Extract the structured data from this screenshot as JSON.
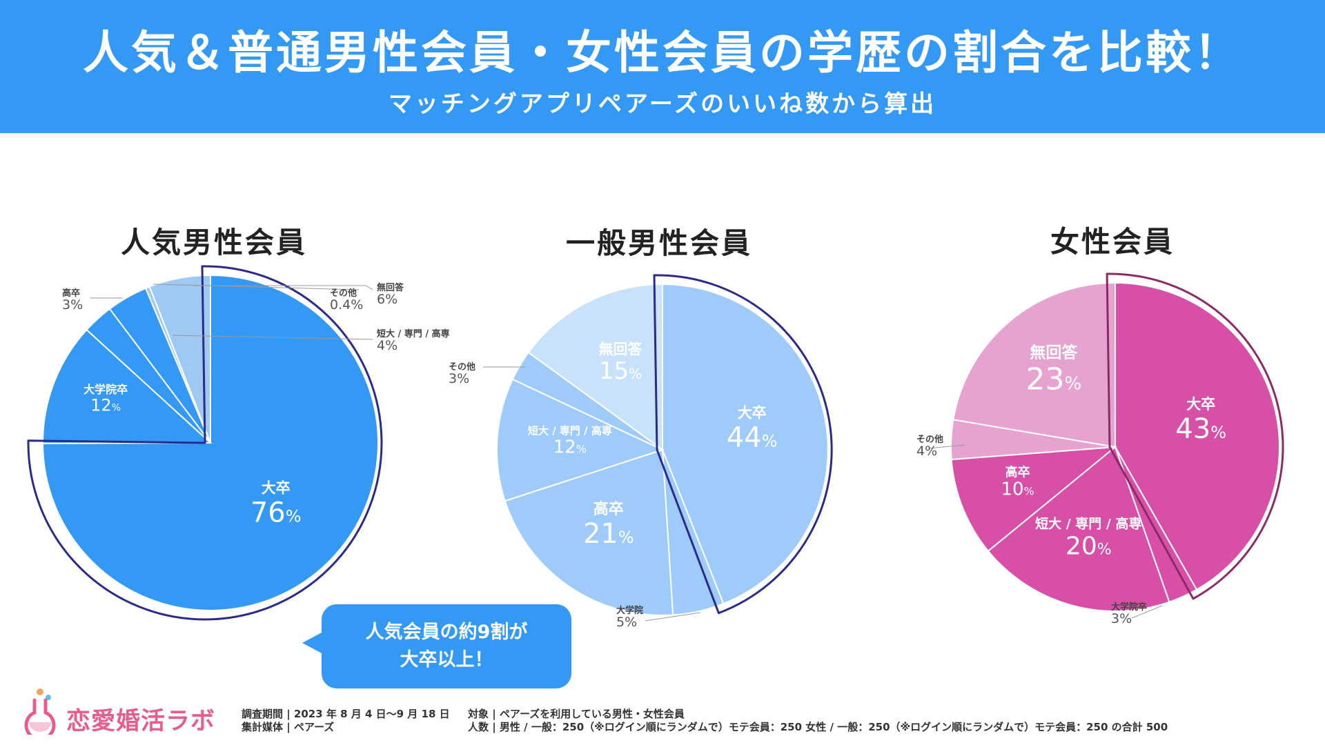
{
  "banner": {
    "title": "人気＆普通男性会員・女性会員の学歴の割合を比較！",
    "subtitle": "マッチングアプリペアーズのいいね数から算出"
  },
  "chart_data": [
    {
      "type": "pie",
      "title": "人気男性会員",
      "highlight_label": "大卒",
      "highlight_color": "#2a2a8c",
      "slices": [
        {
          "label": "大卒",
          "value": 76,
          "display": "76%",
          "color": "#3498f5"
        },
        {
          "label": "大学院卒",
          "value": 12,
          "display": "12%",
          "color": "#3498f5"
        },
        {
          "label": "高卒",
          "value": 3,
          "display": "3%",
          "color": "#3498f5"
        },
        {
          "label": "短大 / 専門 / 高専",
          "value": 4,
          "display": "4%",
          "color": "#3498f5"
        },
        {
          "label": "その他",
          "value": 0.4,
          "display": "0.4%",
          "color": "#9ec9f3"
        },
        {
          "label": "無回答",
          "value": 6,
          "display": "6%",
          "color": "#9ec9f3"
        }
      ]
    },
    {
      "type": "pie",
      "title": "一般男性会員",
      "highlight_label": "大卒",
      "highlight_color": "#2a2a8c",
      "slices": [
        {
          "label": "大卒",
          "value": 44,
          "display": "44%",
          "color": "#9ecbfa"
        },
        {
          "label": "大学院",
          "value": 5,
          "display": "5%",
          "color": "#9ecbfa"
        },
        {
          "label": "高卒",
          "value": 21,
          "display": "21%",
          "color": "#9ecbfa"
        },
        {
          "label": "短大 / 専門 / 高専",
          "value": 12,
          "display": "12%",
          "color": "#9ecbfa"
        },
        {
          "label": "その他",
          "value": 3,
          "display": "3%",
          "color": "#9ecbfa"
        },
        {
          "label": "無回答",
          "value": 15,
          "display": "15%",
          "color": "#c9e2fb"
        }
      ]
    },
    {
      "type": "pie",
      "title": "女性会員",
      "highlight_label": "大卒",
      "highlight_color": "#8c2a66",
      "slices": [
        {
          "label": "大卒",
          "value": 43,
          "display": "43%",
          "color": "#d84fa8"
        },
        {
          "label": "大学院卒",
          "value": 3,
          "display": "3%",
          "color": "#d84fa8"
        },
        {
          "label": "短大 / 専門 / 高専",
          "value": 20,
          "display": "20%",
          "color": "#d84fa8"
        },
        {
          "label": "高卒",
          "value": 10,
          "display": "10%",
          "color": "#d84fa8"
        },
        {
          "label": "その他",
          "value": 4,
          "display": "4%",
          "color": "#e6a3d0"
        },
        {
          "label": "無回答",
          "value": 23,
          "display": "23%",
          "color": "#e6a3d0"
        }
      ]
    }
  ],
  "callout": {
    "line1": "人気会員の約9割が",
    "line2": "大卒以上！"
  },
  "logo": {
    "text": "恋愛婚活ラボ"
  },
  "footer": {
    "period": "調査期間 | 2023 年 8 月 4 日〜9 月 18 日",
    "media": "集計媒体 | ペアーズ",
    "target": "対象 | ペアーズを利用している男性・女性会員",
    "count": "人数 | 男性 / 一般：250（※ログイン順にランダムで）モテ会員：250 女性 / 一般：250（※ログイン順にランダムで）モテ会員：250 の合計 500"
  }
}
